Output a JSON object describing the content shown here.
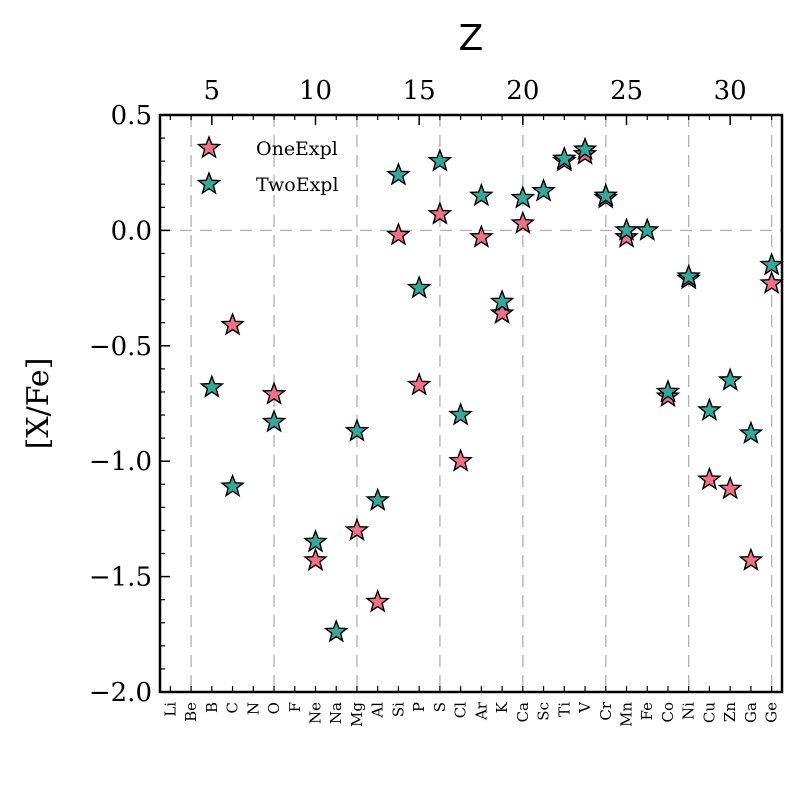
{
  "chart_data": {
    "type": "scatter",
    "xlabel_top": "Z",
    "ylabel": "[X/Fe]",
    "xlim": [
      2.5,
      32.5
    ],
    "ylim": [
      -2.0,
      0.5
    ],
    "top_ticks": [
      5,
      10,
      15,
      20,
      25,
      30
    ],
    "y_ticks": [
      0.5,
      0.0,
      -0.5,
      -1.0,
      -1.5,
      -2.0
    ],
    "y_tick_labels": [
      "0.5",
      "0.0",
      "−0.5",
      "−1.0",
      "−1.5",
      "−2.0"
    ],
    "elements": [
      {
        "z": 3,
        "symbol": "Li"
      },
      {
        "z": 4,
        "symbol": "Be"
      },
      {
        "z": 5,
        "symbol": "B"
      },
      {
        "z": 6,
        "symbol": "C"
      },
      {
        "z": 7,
        "symbol": "N"
      },
      {
        "z": 8,
        "symbol": "O"
      },
      {
        "z": 9,
        "symbol": "F"
      },
      {
        "z": 10,
        "symbol": "Ne"
      },
      {
        "z": 11,
        "symbol": "Na"
      },
      {
        "z": 12,
        "symbol": "Mg"
      },
      {
        "z": 13,
        "symbol": "Al"
      },
      {
        "z": 14,
        "symbol": "Si"
      },
      {
        "z": 15,
        "symbol": "P"
      },
      {
        "z": 16,
        "symbol": "S"
      },
      {
        "z": 17,
        "symbol": "Cl"
      },
      {
        "z": 18,
        "symbol": "Ar"
      },
      {
        "z": 19,
        "symbol": "K"
      },
      {
        "z": 20,
        "symbol": "Ca"
      },
      {
        "z": 21,
        "symbol": "Sc"
      },
      {
        "z": 22,
        "symbol": "Ti"
      },
      {
        "z": 23,
        "symbol": "V"
      },
      {
        "z": 24,
        "symbol": "Cr"
      },
      {
        "z": 25,
        "symbol": "Mn"
      },
      {
        "z": 26,
        "symbol": "Fe"
      },
      {
        "z": 27,
        "symbol": "Co"
      },
      {
        "z": 28,
        "symbol": "Ni"
      },
      {
        "z": 29,
        "symbol": "Cu"
      },
      {
        "z": 30,
        "symbol": "Zn"
      },
      {
        "z": 31,
        "symbol": "Ga"
      },
      {
        "z": 32,
        "symbol": "Ge"
      }
    ],
    "vlines_x": [
      4,
      8,
      12,
      16,
      20,
      24,
      28,
      32
    ],
    "hline_y": 0.0,
    "legend": {
      "position": "top-left"
    },
    "series": [
      {
        "name": "OneExpl",
        "color": "#f07087",
        "points": [
          {
            "x": 6,
            "y": -0.41
          },
          {
            "x": 8,
            "y": -0.71
          },
          {
            "x": 10,
            "y": -1.43
          },
          {
            "x": 12,
            "y": -1.3
          },
          {
            "x": 13,
            "y": -1.61
          },
          {
            "x": 14,
            "y": -0.02
          },
          {
            "x": 15,
            "y": -0.67
          },
          {
            "x": 16,
            "y": 0.07
          },
          {
            "x": 17,
            "y": -1.0
          },
          {
            "x": 18,
            "y": -0.03
          },
          {
            "x": 19,
            "y": -0.36
          },
          {
            "x": 20,
            "y": 0.03
          },
          {
            "x": 22,
            "y": 0.3
          },
          {
            "x": 23,
            "y": 0.33
          },
          {
            "x": 24,
            "y": 0.14
          },
          {
            "x": 25,
            "y": -0.03
          },
          {
            "x": 27,
            "y": -0.72
          },
          {
            "x": 28,
            "y": -0.21
          },
          {
            "x": 29,
            "y": -1.08
          },
          {
            "x": 30,
            "y": -1.12
          },
          {
            "x": 31,
            "y": -1.43
          },
          {
            "x": 32,
            "y": -0.23
          }
        ]
      },
      {
        "name": "TwoExpl",
        "color": "#34a89a",
        "points": [
          {
            "x": 5,
            "y": -0.68
          },
          {
            "x": 6,
            "y": -1.11
          },
          {
            "x": 8,
            "y": -0.83
          },
          {
            "x": 10,
            "y": -1.35
          },
          {
            "x": 11,
            "y": -1.74
          },
          {
            "x": 12,
            "y": -0.87
          },
          {
            "x": 13,
            "y": -1.17
          },
          {
            "x": 14,
            "y": 0.24
          },
          {
            "x": 15,
            "y": -0.25
          },
          {
            "x": 16,
            "y": 0.3
          },
          {
            "x": 17,
            "y": -0.8
          },
          {
            "x": 18,
            "y": 0.15
          },
          {
            "x": 19,
            "y": -0.31
          },
          {
            "x": 20,
            "y": 0.14
          },
          {
            "x": 21,
            "y": 0.17
          },
          {
            "x": 22,
            "y": 0.31
          },
          {
            "x": 23,
            "y": 0.35
          },
          {
            "x": 24,
            "y": 0.15
          },
          {
            "x": 25,
            "y": 0.0
          },
          {
            "x": 26,
            "y": 0.0
          },
          {
            "x": 27,
            "y": -0.7
          },
          {
            "x": 28,
            "y": -0.2
          },
          {
            "x": 29,
            "y": -0.78
          },
          {
            "x": 30,
            "y": -0.65
          },
          {
            "x": 31,
            "y": -0.88
          },
          {
            "x": 32,
            "y": -0.15
          }
        ]
      }
    ]
  }
}
